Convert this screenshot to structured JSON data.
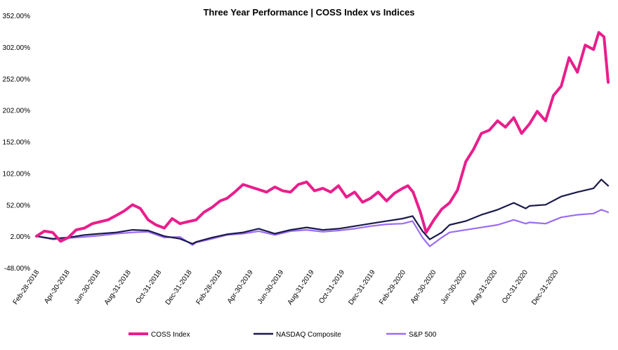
{
  "chart_data": {
    "type": "line",
    "title": "Three Year Performance | COSS Index vs Indices",
    "xlabel": "",
    "ylabel": "",
    "ylim": [
      -48,
      352
    ],
    "y_ticks": [
      352,
      302,
      252,
      202,
      152,
      102,
      52,
      2,
      -48
    ],
    "y_tick_labels": [
      "352.00%",
      "302.00%",
      "252.00%",
      "202.00%",
      "152.00%",
      "102.00%",
      "52.00%",
      "2.00%",
      "-48.00%"
    ],
    "x_tick_labels": [
      "Feb-28-2018",
      "Apr-30-2018",
      "Jun-30-2018",
      "Aug-31-2018",
      "Oct-31-2018",
      "Dec-31-2018",
      "Feb-28-2019",
      "Apr-30-2019",
      "Jun-30-2019",
      "Aug-31-2019",
      "Oct-31-2019",
      "Dec-31-2019",
      "Feb-29-2020",
      "Apr-30-2020",
      "Jun-30-2020",
      "Aug-31-2020",
      "Oct-31-2020",
      "Dec-31-2020"
    ],
    "grid": false,
    "legend_position": "bottom",
    "series": [
      {
        "name": "COSS Index",
        "color": "#e91e8c",
        "points": [
          [
            "2018-02-28",
            2
          ],
          [
            "2018-03-15",
            10
          ],
          [
            "2018-03-31",
            8
          ],
          [
            "2018-04-15",
            -6
          ],
          [
            "2018-04-30",
            0
          ],
          [
            "2018-05-15",
            12
          ],
          [
            "2018-05-31",
            15
          ],
          [
            "2018-06-15",
            22
          ],
          [
            "2018-06-30",
            25
          ],
          [
            "2018-07-15",
            28
          ],
          [
            "2018-07-31",
            35
          ],
          [
            "2018-08-15",
            42
          ],
          [
            "2018-08-31",
            52
          ],
          [
            "2018-09-15",
            46
          ],
          [
            "2018-09-30",
            28
          ],
          [
            "2018-10-15",
            20
          ],
          [
            "2018-10-31",
            15
          ],
          [
            "2018-11-15",
            30
          ],
          [
            "2018-11-30",
            22
          ],
          [
            "2018-12-15",
            25
          ],
          [
            "2018-12-31",
            28
          ],
          [
            "2019-01-15",
            40
          ],
          [
            "2019-01-31",
            48
          ],
          [
            "2019-02-15",
            58
          ],
          [
            "2019-02-28",
            62
          ],
          [
            "2019-03-15",
            72
          ],
          [
            "2019-03-31",
            84
          ],
          [
            "2019-04-15",
            80
          ],
          [
            "2019-04-30",
            76
          ],
          [
            "2019-05-15",
            72
          ],
          [
            "2019-05-31",
            80
          ],
          [
            "2019-06-15",
            74
          ],
          [
            "2019-06-30",
            72
          ],
          [
            "2019-07-15",
            84
          ],
          [
            "2019-07-31",
            88
          ],
          [
            "2019-08-15",
            74
          ],
          [
            "2019-08-31",
            78
          ],
          [
            "2019-09-15",
            72
          ],
          [
            "2019-09-30",
            82
          ],
          [
            "2019-10-15",
            64
          ],
          [
            "2019-10-31",
            72
          ],
          [
            "2019-11-15",
            56
          ],
          [
            "2019-11-30",
            62
          ],
          [
            "2019-12-15",
            72
          ],
          [
            "2019-12-31",
            58
          ],
          [
            "2020-01-15",
            70
          ],
          [
            "2020-01-31",
            78
          ],
          [
            "2020-02-10",
            82
          ],
          [
            "2020-02-20",
            72
          ],
          [
            "2020-03-05",
            40
          ],
          [
            "2020-03-16",
            8
          ],
          [
            "2020-03-31",
            28
          ],
          [
            "2020-04-15",
            45
          ],
          [
            "2020-04-30",
            55
          ],
          [
            "2020-05-15",
            75
          ],
          [
            "2020-05-31",
            120
          ],
          [
            "2020-06-15",
            140
          ],
          [
            "2020-06-30",
            165
          ],
          [
            "2020-07-15",
            170
          ],
          [
            "2020-07-31",
            185
          ],
          [
            "2020-08-15",
            175
          ],
          [
            "2020-08-31",
            190
          ],
          [
            "2020-09-15",
            165
          ],
          [
            "2020-09-30",
            180
          ],
          [
            "2020-10-15",
            200
          ],
          [
            "2020-10-31",
            185
          ],
          [
            "2020-11-15",
            225
          ],
          [
            "2020-11-30",
            240
          ],
          [
            "2020-12-15",
            285
          ],
          [
            "2020-12-31",
            262
          ],
          [
            "2021-01-15",
            305
          ],
          [
            "2021-01-31",
            298
          ],
          [
            "2021-02-10",
            325
          ],
          [
            "2021-02-20",
            318
          ],
          [
            "2021-02-28",
            246
          ]
        ]
      },
      {
        "name": "NASDAQ Composite",
        "color": "#1a1a4b",
        "points": [
          [
            "2018-02-28",
            2
          ],
          [
            "2018-03-31",
            -2
          ],
          [
            "2018-04-30",
            0
          ],
          [
            "2018-05-31",
            4
          ],
          [
            "2018-06-30",
            6
          ],
          [
            "2018-07-31",
            8
          ],
          [
            "2018-08-31",
            12
          ],
          [
            "2018-09-30",
            11
          ],
          [
            "2018-10-31",
            2
          ],
          [
            "2018-11-30",
            -2
          ],
          [
            "2018-12-24",
            -10
          ],
          [
            "2018-12-31",
            -7
          ],
          [
            "2019-01-31",
            0
          ],
          [
            "2019-02-28",
            5
          ],
          [
            "2019-03-31",
            8
          ],
          [
            "2019-04-30",
            14
          ],
          [
            "2019-05-31",
            6
          ],
          [
            "2019-06-30",
            12
          ],
          [
            "2019-07-31",
            16
          ],
          [
            "2019-08-31",
            12
          ],
          [
            "2019-09-30",
            14
          ],
          [
            "2019-10-31",
            18
          ],
          [
            "2019-11-30",
            22
          ],
          [
            "2019-12-31",
            26
          ],
          [
            "2020-01-31",
            30
          ],
          [
            "2020-02-19",
            34
          ],
          [
            "2020-03-09",
            10
          ],
          [
            "2020-03-23",
            -3
          ],
          [
            "2020-04-15",
            8
          ],
          [
            "2020-04-30",
            20
          ],
          [
            "2020-05-31",
            26
          ],
          [
            "2020-06-30",
            36
          ],
          [
            "2020-07-31",
            44
          ],
          [
            "2020-08-31",
            55
          ],
          [
            "2020-09-23",
            46
          ],
          [
            "2020-09-30",
            50
          ],
          [
            "2020-10-31",
            52
          ],
          [
            "2020-11-30",
            65
          ],
          [
            "2020-12-31",
            72
          ],
          [
            "2021-01-31",
            78
          ],
          [
            "2021-02-15",
            92
          ],
          [
            "2021-02-28",
            82
          ]
        ]
      },
      {
        "name": "S&P 500",
        "color": "#9b6cf3",
        "points": [
          [
            "2018-02-28",
            2
          ],
          [
            "2018-03-31",
            -3
          ],
          [
            "2018-04-30",
            -1
          ],
          [
            "2018-05-31",
            1
          ],
          [
            "2018-06-30",
            3
          ],
          [
            "2018-07-31",
            6
          ],
          [
            "2018-08-31",
            8
          ],
          [
            "2018-09-30",
            9
          ],
          [
            "2018-10-31",
            0
          ],
          [
            "2018-11-30",
            1
          ],
          [
            "2018-12-24",
            -12
          ],
          [
            "2018-12-31",
            -8
          ],
          [
            "2019-01-31",
            -2
          ],
          [
            "2019-02-28",
            4
          ],
          [
            "2019-03-31",
            6
          ],
          [
            "2019-04-30",
            10
          ],
          [
            "2019-05-31",
            4
          ],
          [
            "2019-06-30",
            10
          ],
          [
            "2019-07-31",
            12
          ],
          [
            "2019-08-31",
            9
          ],
          [
            "2019-09-30",
            11
          ],
          [
            "2019-10-31",
            14
          ],
          [
            "2019-11-30",
            18
          ],
          [
            "2019-12-31",
            21
          ],
          [
            "2020-01-31",
            22
          ],
          [
            "2020-02-19",
            26
          ],
          [
            "2020-03-09",
            0
          ],
          [
            "2020-03-23",
            -14
          ],
          [
            "2020-04-15",
            0
          ],
          [
            "2020-04-30",
            8
          ],
          [
            "2020-05-31",
            12
          ],
          [
            "2020-06-30",
            16
          ],
          [
            "2020-07-31",
            20
          ],
          [
            "2020-08-31",
            28
          ],
          [
            "2020-09-23",
            22
          ],
          [
            "2020-09-30",
            24
          ],
          [
            "2020-10-31",
            22
          ],
          [
            "2020-11-30",
            32
          ],
          [
            "2020-12-31",
            36
          ],
          [
            "2021-01-31",
            38
          ],
          [
            "2021-02-15",
            44
          ],
          [
            "2021-02-28",
            40
          ]
        ]
      }
    ]
  }
}
